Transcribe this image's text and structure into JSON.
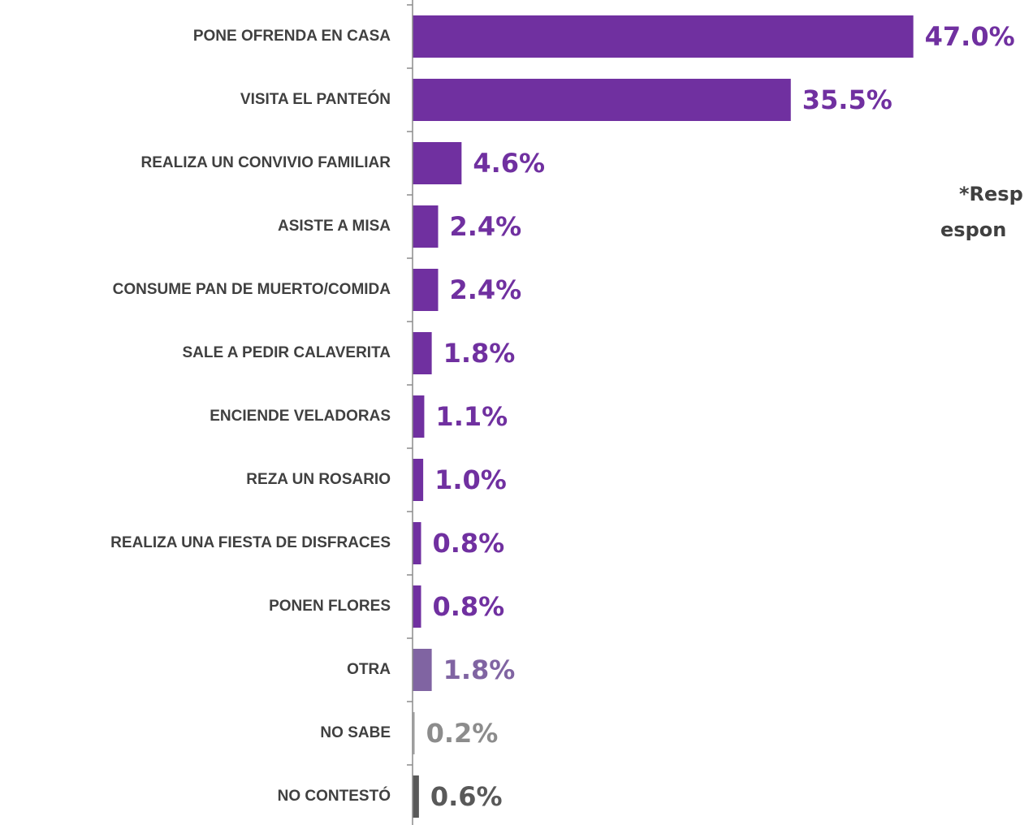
{
  "chart_data": {
    "type": "barh",
    "categories": [
      "PONE OFRENDA EN CASA",
      "VISITA EL PANTEÓN",
      "REALIZA UN CONVIVIO FAMILIAR",
      "ASISTE A MISA",
      "CONSUME PAN DE MUERTO/COMIDA",
      "SALE A PEDIR CALAVERITA",
      "ENCIENDE VELADORAS",
      "REZA UN ROSARIO",
      "REALIZA UNA FIESTA DE DISFRACES",
      "PONEN FLORES",
      "OTRA",
      "NO SABE",
      "NO CONTESTÓ"
    ],
    "values": [
      47.0,
      35.5,
      4.6,
      2.4,
      2.4,
      1.8,
      1.1,
      1.0,
      0.8,
      0.8,
      1.8,
      0.2,
      0.6
    ],
    "value_labels": [
      "47.0%",
      "35.5%",
      "4.6%",
      "2.4%",
      "2.4%",
      "1.8%",
      "1.1%",
      "1.0%",
      "0.8%",
      "0.8%",
      "1.8%",
      "0.2%",
      "0.6%"
    ],
    "colors": [
      "#7030a0",
      "#7030a0",
      "#7030a0",
      "#7030a0",
      "#7030a0",
      "#7030a0",
      "#7030a0",
      "#7030a0",
      "#7030a0",
      "#7030a0",
      "#8064a2",
      "#a6a6a6",
      "#595959"
    ],
    "label_colors": [
      "#7030a0",
      "#7030a0",
      "#7030a0",
      "#7030a0",
      "#7030a0",
      "#7030a0",
      "#7030a0",
      "#7030a0",
      "#7030a0",
      "#7030a0",
      "#8064a2",
      "#8c8c8c",
      "#595959"
    ],
    "xlim": [
      0,
      50
    ],
    "note": [
      "*Resp",
      "espon"
    ]
  }
}
